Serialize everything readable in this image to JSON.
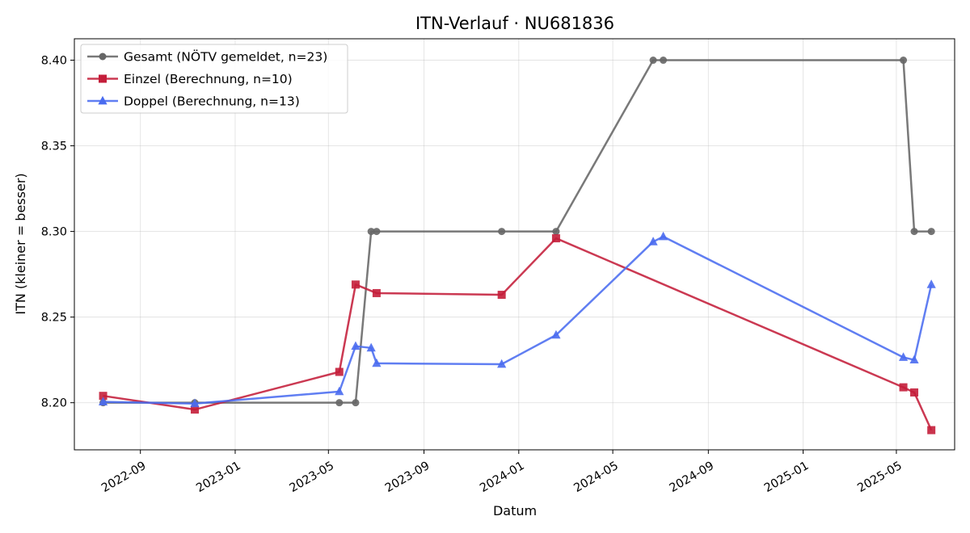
{
  "chart_data": {
    "type": "line",
    "title": "ITN-Verlauf · NU681836",
    "xlabel": "Datum",
    "ylabel": "ITN  (kleiner = besser)",
    "xlim": [
      "2022-06-08",
      "2025-07-15"
    ],
    "ylim": [
      8.1725,
      8.4125
    ],
    "x_ticks": [
      "2022-09",
      "2023-01",
      "2023-05",
      "2023-09",
      "2024-01",
      "2024-05",
      "2024-09",
      "2025-01",
      "2025-05"
    ],
    "y_ticks": [
      "8.20",
      "8.25",
      "8.30",
      "8.35",
      "8.40"
    ],
    "grid": true,
    "legend_position": "top-left",
    "series": [
      {
        "name": "Gesamt (NÖTV gemeldet, n=23)",
        "color": "#666666",
        "marker": "circle",
        "points": [
          {
            "x": "2022-07-15",
            "y": 8.2
          },
          {
            "x": "2022-11-10",
            "y": 8.2
          },
          {
            "x": "2023-05-15",
            "y": 8.2
          },
          {
            "x": "2023-06-05",
            "y": 8.2
          },
          {
            "x": "2023-06-25",
            "y": 8.3
          },
          {
            "x": "2023-07-02",
            "y": 8.3
          },
          {
            "x": "2023-12-10",
            "y": 8.3
          },
          {
            "x": "2024-02-18",
            "y": 8.3
          },
          {
            "x": "2024-06-22",
            "y": 8.4
          },
          {
            "x": "2024-07-05",
            "y": 8.4
          },
          {
            "x": "2025-05-10",
            "y": 8.4
          },
          {
            "x": "2025-05-24",
            "y": 8.3
          },
          {
            "x": "2025-06-15",
            "y": 8.3
          }
        ]
      },
      {
        "name": "Einzel (Berechnung, n=10)",
        "color": "#c41e3a",
        "marker": "square",
        "points": [
          {
            "x": "2022-07-15",
            "y": 8.204
          },
          {
            "x": "2022-11-10",
            "y": 8.196
          },
          {
            "x": "2023-05-15",
            "y": 8.218
          },
          {
            "x": "2023-06-05",
            "y": 8.269
          },
          {
            "x": "2023-07-02",
            "y": 8.264
          },
          {
            "x": "2023-12-10",
            "y": 8.263
          },
          {
            "x": "2024-02-18",
            "y": 8.296
          },
          {
            "x": "2025-05-10",
            "y": 8.209
          },
          {
            "x": "2025-05-24",
            "y": 8.206
          },
          {
            "x": "2025-06-15",
            "y": 8.184
          }
        ]
      },
      {
        "name": "Doppel (Berechnung, n=13)",
        "color": "#4a6cf0",
        "marker": "triangle",
        "points": [
          {
            "x": "2022-07-15",
            "y": 8.2005
          },
          {
            "x": "2022-11-10",
            "y": 8.1995
          },
          {
            "x": "2023-05-15",
            "y": 8.2065
          },
          {
            "x": "2023-06-05",
            "y": 8.233
          },
          {
            "x": "2023-06-25",
            "y": 8.232
          },
          {
            "x": "2023-07-02",
            "y": 8.223
          },
          {
            "x": "2023-12-10",
            "y": 8.2225
          },
          {
            "x": "2024-02-18",
            "y": 8.2395
          },
          {
            "x": "2024-06-22",
            "y": 8.294
          },
          {
            "x": "2024-07-05",
            "y": 8.297
          },
          {
            "x": "2025-05-10",
            "y": 8.2265
          },
          {
            "x": "2025-05-24",
            "y": 8.225
          },
          {
            "x": "2025-06-15",
            "y": 8.269
          }
        ]
      }
    ]
  }
}
